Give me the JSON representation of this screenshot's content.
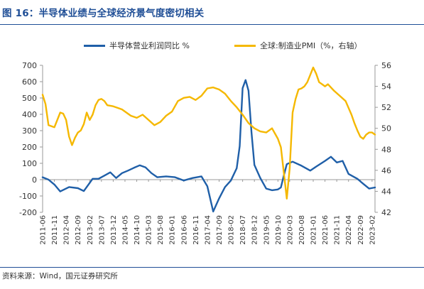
{
  "figure": {
    "title": "图 16：半导体业绩与全球经济景气度密切相关",
    "source": "资料来源：Wind，国元证券研究所"
  },
  "colors": {
    "title": "#1f4e96",
    "semiconductor": "#1f5fa8",
    "pmi": "#f5b800"
  },
  "chart_data": {
    "type": "line",
    "legend_position": "top",
    "grid": false,
    "x_tick_labels": [
      "2011-06",
      "2011-11",
      "2012-04",
      "2012-09",
      "2013-02",
      "2013-07",
      "2013-12",
      "2014-05",
      "2014-10",
      "2015-03",
      "2015-08",
      "2016-01",
      "2016-06",
      "2016-11",
      "2017-04",
      "2017-09",
      "2018-02",
      "2018-07",
      "2018-12",
      "2019-05",
      "2019-10",
      "2020-03",
      "2020-08",
      "2021-01",
      "2021-06",
      "2021-11",
      "2022-04",
      "2022-09",
      "2023-02"
    ],
    "y_left": {
      "ticks": [
        "700",
        "600",
        "500",
        "400",
        "300",
        "200",
        "100",
        "0",
        "-100",
        "-200"
      ],
      "ylim": [
        -200,
        700
      ]
    },
    "y_right": {
      "ticks": [
        "56",
        "54",
        "52",
        "50",
        "48",
        "46",
        "44",
        "42"
      ],
      "ylim": [
        42,
        56
      ]
    },
    "series": [
      {
        "name": "半导体营业利润同比 %",
        "axis": "left",
        "points": [
          [
            0,
            15
          ],
          [
            2,
            0
          ],
          [
            4,
            -30
          ],
          [
            6,
            -72
          ],
          [
            9,
            -45
          ],
          [
            12,
            -52
          ],
          [
            14,
            -70
          ],
          [
            17,
            5
          ],
          [
            19,
            5
          ],
          [
            21,
            25
          ],
          [
            23,
            45
          ],
          [
            25,
            10
          ],
          [
            27,
            40
          ],
          [
            29,
            55
          ],
          [
            31,
            72
          ],
          [
            33,
            88
          ],
          [
            35,
            75
          ],
          [
            37,
            40
          ],
          [
            39,
            15
          ],
          [
            42,
            20
          ],
          [
            45,
            15
          ],
          [
            48,
            -5
          ],
          [
            51,
            10
          ],
          [
            54,
            20
          ],
          [
            56,
            -40
          ],
          [
            58,
            -195
          ],
          [
            60,
            -115
          ],
          [
            62,
            -45
          ],
          [
            64,
            -5
          ],
          [
            66,
            70
          ],
          [
            67,
            205
          ],
          [
            68,
            560
          ],
          [
            69,
            610
          ],
          [
            70,
            545
          ],
          [
            71,
            290
          ],
          [
            72,
            90
          ],
          [
            74,
            10
          ],
          [
            76,
            -55
          ],
          [
            78,
            -65
          ],
          [
            80,
            -60
          ],
          [
            81,
            -48
          ],
          [
            82,
            25
          ],
          [
            83,
            95
          ],
          [
            85,
            110
          ],
          [
            88,
            85
          ],
          [
            91,
            55
          ],
          [
            93,
            80
          ],
          [
            96,
            115
          ],
          [
            98,
            140
          ],
          [
            100,
            105
          ],
          [
            102,
            115
          ],
          [
            104,
            35
          ],
          [
            107,
            5
          ],
          [
            109,
            -25
          ],
          [
            111,
            -55
          ],
          [
            113,
            -48
          ]
        ]
      },
      {
        "name": "全球:制造业PMI（%，右轴）",
        "axis": "right",
        "points": [
          [
            0,
            53.2
          ],
          [
            1,
            52.3
          ],
          [
            2,
            50.3
          ],
          [
            4,
            50.1
          ],
          [
            6,
            51.5
          ],
          [
            7,
            51.4
          ],
          [
            8,
            50.8
          ],
          [
            9,
            49.2
          ],
          [
            10,
            48.4
          ],
          [
            11,
            49.1
          ],
          [
            12,
            49.6
          ],
          [
            13,
            49.8
          ],
          [
            14,
            50.4
          ],
          [
            15,
            51.5
          ],
          [
            16,
            50.8
          ],
          [
            17,
            51.3
          ],
          [
            18,
            52.2
          ],
          [
            19,
            52.7
          ],
          [
            20,
            52.8
          ],
          [
            21,
            52.6
          ],
          [
            22,
            52.2
          ],
          [
            24,
            52.1
          ],
          [
            26,
            51.9
          ],
          [
            27,
            51.8
          ],
          [
            28,
            51.6
          ],
          [
            30,
            51.2
          ],
          [
            32,
            51.0
          ],
          [
            34,
            51.3
          ],
          [
            36,
            50.8
          ],
          [
            38,
            50.3
          ],
          [
            40,
            50.6
          ],
          [
            42,
            51.2
          ],
          [
            44,
            51.6
          ],
          [
            46,
            52.6
          ],
          [
            48,
            52.9
          ],
          [
            50,
            53.0
          ],
          [
            52,
            52.7
          ],
          [
            54,
            53.1
          ],
          [
            56,
            53.8
          ],
          [
            58,
            53.9
          ],
          [
            60,
            53.7
          ],
          [
            62,
            53.3
          ],
          [
            64,
            52.6
          ],
          [
            66,
            52.0
          ],
          [
            68,
            51.3
          ],
          [
            70,
            50.5
          ],
          [
            72,
            50.0
          ],
          [
            74,
            49.7
          ],
          [
            76,
            49.6
          ],
          [
            78,
            50.0
          ],
          [
            79,
            49.5
          ],
          [
            80,
            49.0
          ],
          [
            81,
            48.2
          ],
          [
            82,
            45.8
          ],
          [
            83,
            43.3
          ],
          [
            84,
            46.2
          ],
          [
            85,
            51.5
          ],
          [
            86,
            52.8
          ],
          [
            87,
            53.7
          ],
          [
            88,
            53.8
          ],
          [
            89,
            54.0
          ],
          [
            90,
            54.4
          ],
          [
            91,
            55.1
          ],
          [
            92,
            55.8
          ],
          [
            93,
            55.2
          ],
          [
            94,
            54.4
          ],
          [
            95,
            54.2
          ],
          [
            96,
            54.0
          ],
          [
            97,
            54.2
          ],
          [
            99,
            53.6
          ],
          [
            101,
            53.1
          ],
          [
            103,
            52.6
          ],
          [
            105,
            51.3
          ],
          [
            106,
            50.5
          ],
          [
            107,
            49.8
          ],
          [
            108,
            49.2
          ],
          [
            109,
            49.0
          ],
          [
            110,
            49.4
          ],
          [
            111,
            49.6
          ],
          [
            112,
            49.6
          ],
          [
            113,
            49.4
          ]
        ]
      }
    ]
  }
}
